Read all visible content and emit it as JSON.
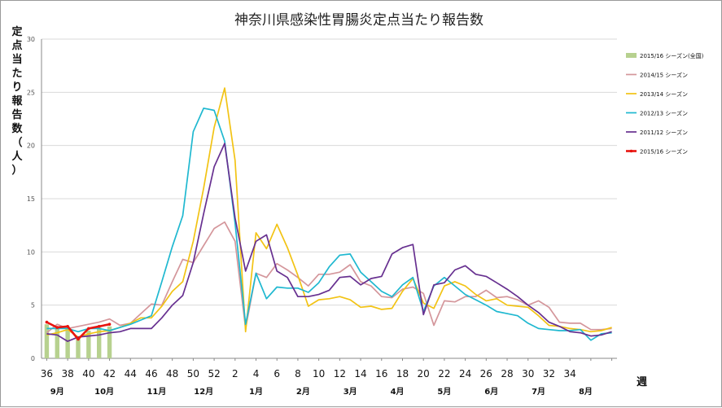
{
  "chart_data": {
    "type": "line",
    "title": "神奈川県感染性胃腸炎定点当たり報告数",
    "ylabel": "定点当たり報告数（人）",
    "xlabel": "週",
    "ylim": [
      0,
      30
    ],
    "yticks": [
      "0",
      "5",
      "10",
      "15",
      "20",
      "25",
      "30"
    ],
    "grid": true,
    "legend_position": "right",
    "x_ticks": [
      "36",
      "38",
      "40",
      "42",
      "44",
      "46",
      "48",
      "50",
      "52",
      "2",
      "4",
      "6",
      "8",
      "10",
      "12",
      "14",
      "16",
      "18",
      "20",
      "22",
      "24",
      "26",
      "28",
      "30",
      "32",
      "34"
    ],
    "months": [
      {
        "label": "9月",
        "at": 1
      },
      {
        "label": "10月",
        "at": 5.5
      },
      {
        "label": "11月",
        "at": 10.5
      },
      {
        "label": "12月",
        "at": 15
      },
      {
        "label": "1月",
        "at": 20
      },
      {
        "label": "2月",
        "at": 24.5
      },
      {
        "label": "3月",
        "at": 29
      },
      {
        "label": "4月",
        "at": 33.5
      },
      {
        "label": "5月",
        "at": 38
      },
      {
        "label": "6月",
        "at": 42.5
      },
      {
        "label": "7月",
        "at": 47
      },
      {
        "label": "8月",
        "at": 51.5
      }
    ],
    "series": [
      {
        "name": "2015/16 シーズン(全国)",
        "kind": "bar",
        "color": "#b7d18f",
        "values": [
          3.2,
          3.0,
          3.0,
          1.9,
          2.6,
          2.9,
          3.0
        ]
      },
      {
        "name": "2014/15 シーズン",
        "kind": "line",
        "color": "#d4969b",
        "values": [
          2.4,
          3.2,
          2.8,
          3.0,
          3.2,
          3.4,
          3.7,
          3.1,
          3.3,
          4.2,
          5.1,
          5.0,
          7.2,
          9.3,
          9.0,
          10.6,
          12.2,
          12.8,
          11.0,
          2.8,
          8.0,
          7.6,
          8.9,
          8.3,
          7.6,
          6.8,
          7.9,
          7.9,
          8.1,
          8.8,
          7.2,
          6.8,
          5.8,
          5.7,
          6.5,
          6.7,
          6.1,
          3.1,
          5.4,
          5.3,
          5.8,
          5.8,
          6.4,
          5.7,
          5.8,
          5.5,
          5.0,
          5.4,
          4.8,
          3.4,
          3.3,
          3.3,
          2.7,
          2.7,
          2.8
        ]
      },
      {
        "name": "2013/14 シーズン",
        "kind": "line",
        "color": "#f2c314",
        "values": [
          2.2,
          2.4,
          2.7,
          2.0,
          2.3,
          2.5,
          2.6,
          2.9,
          3.3,
          3.8,
          3.8,
          4.9,
          6.3,
          7.2,
          11.0,
          16.0,
          21.7,
          25.4,
          18.6,
          2.5,
          11.8,
          10.3,
          12.6,
          10.4,
          7.8,
          4.9,
          5.5,
          5.6,
          5.8,
          5.5,
          4.8,
          4.9,
          4.6,
          4.7,
          6.3,
          7.5,
          5.2,
          4.7,
          6.8,
          7.2,
          6.8,
          6.0,
          5.4,
          5.6,
          5.0,
          4.9,
          4.8,
          4.0,
          3.1,
          3.0,
          2.8,
          2.7,
          2.5,
          2.6,
          2.9
        ]
      },
      {
        "name": "2012/13 シーズン",
        "kind": "line",
        "color": "#1fb8d0",
        "values": [
          2.8,
          2.8,
          2.8,
          2.5,
          2.8,
          2.8,
          2.6,
          2.9,
          3.2,
          3.6,
          4.0,
          7.2,
          10.5,
          13.4,
          21.3,
          23.5,
          23.3,
          20.4,
          12.7,
          3.2,
          8.0,
          5.6,
          6.7,
          6.6,
          6.6,
          6.2,
          7.1,
          8.6,
          9.7,
          9.8,
          8.1,
          7.2,
          6.3,
          5.8,
          6.9,
          7.6,
          4.4,
          6.8,
          7.6,
          6.8,
          6.0,
          5.5,
          5.0,
          4.4,
          4.2,
          4.0,
          3.3,
          2.8,
          2.7,
          2.6,
          2.6,
          2.7,
          1.7,
          2.3,
          2.4
        ]
      },
      {
        "name": "2011/12 シーズン",
        "kind": "line",
        "color": "#673090",
        "values": [
          2.3,
          2.2,
          1.6,
          2.0,
          2.1,
          2.2,
          2.4,
          2.5,
          2.8,
          2.8,
          2.8,
          3.8,
          5.0,
          5.9,
          9.0,
          13.6,
          18.0,
          20.2,
          13.2,
          8.2,
          11.0,
          11.6,
          8.2,
          7.6,
          5.8,
          5.8,
          6.0,
          6.4,
          7.6,
          7.7,
          6.9,
          7.5,
          7.7,
          9.8,
          10.4,
          10.7,
          4.1,
          6.9,
          7.1,
          8.3,
          8.7,
          7.9,
          7.7,
          7.1,
          6.5,
          5.8,
          5.0,
          4.3,
          3.4,
          3.0,
          2.5,
          2.4,
          2.1,
          2.2,
          2.5
        ]
      },
      {
        "name": "2015/16 シーズン",
        "kind": "line",
        "color": "#e8130f",
        "values": [
          3.4,
          2.9,
          3.0,
          1.8,
          2.8,
          3.0,
          3.2
        ]
      }
    ]
  }
}
